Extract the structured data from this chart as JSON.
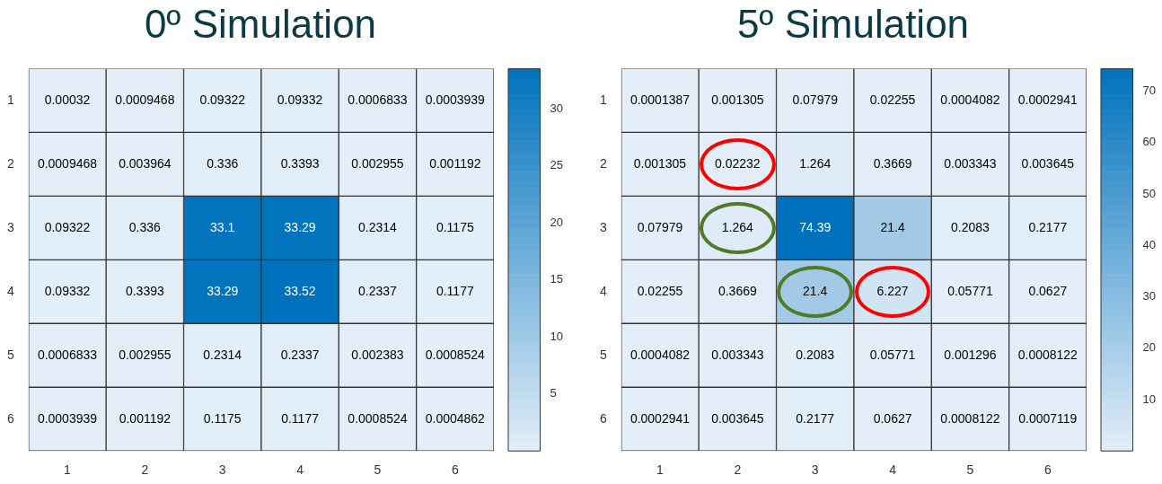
{
  "chart_data": [
    {
      "type": "heatmap",
      "title": "0º Simulation",
      "categories": [
        "1",
        "2",
        "3",
        "4",
        "5",
        "6"
      ],
      "y_categories": [
        "1",
        "2",
        "3",
        "4",
        "5",
        "6"
      ],
      "cells": [
        [
          0.00032,
          0.0009468,
          0.09322,
          0.09332,
          0.0006833,
          0.0003939
        ],
        [
          0.0009468,
          0.003964,
          0.336,
          0.3393,
          0.002955,
          0.001192
        ],
        [
          0.09322,
          0.336,
          33.1,
          33.29,
          0.2314,
          0.1175
        ],
        [
          0.09332,
          0.3393,
          33.29,
          33.52,
          0.2337,
          0.1177
        ],
        [
          0.0006833,
          0.002955,
          0.2314,
          0.2337,
          0.002383,
          0.0008524
        ],
        [
          0.0003939,
          0.001192,
          0.1175,
          0.1177,
          0.0008524,
          0.0004862
        ]
      ],
      "clim": [
        0,
        33.52
      ],
      "cticks": [
        5,
        10,
        15,
        20,
        25,
        30
      ],
      "data_labels": true
    },
    {
      "type": "heatmap",
      "title": "5º Simulation",
      "categories": [
        "1",
        "2",
        "3",
        "4",
        "5",
        "6"
      ],
      "y_categories": [
        "1",
        "2",
        "3",
        "4",
        "5",
        "6"
      ],
      "cells": [
        [
          0.0001387,
          0.001305,
          0.07979,
          0.02255,
          0.0004082,
          0.0002941
        ],
        [
          0.001305,
          0.02232,
          1.264,
          0.3669,
          0.003343,
          0.003645
        ],
        [
          0.07979,
          1.264,
          74.39,
          21.4,
          0.2083,
          0.2177
        ],
        [
          0.02255,
          0.3669,
          21.4,
          6.227,
          0.05771,
          0.0627
        ],
        [
          0.0004082,
          0.003343,
          0.2083,
          0.05771,
          0.001296,
          0.0008122
        ],
        [
          0.0002941,
          0.003645,
          0.2177,
          0.0627,
          0.0008122,
          0.0007119
        ]
      ],
      "clim": [
        0,
        74.39
      ],
      "cticks": [
        10,
        20,
        30,
        40,
        50,
        60,
        70
      ],
      "data_labels": true
    }
  ]
}
